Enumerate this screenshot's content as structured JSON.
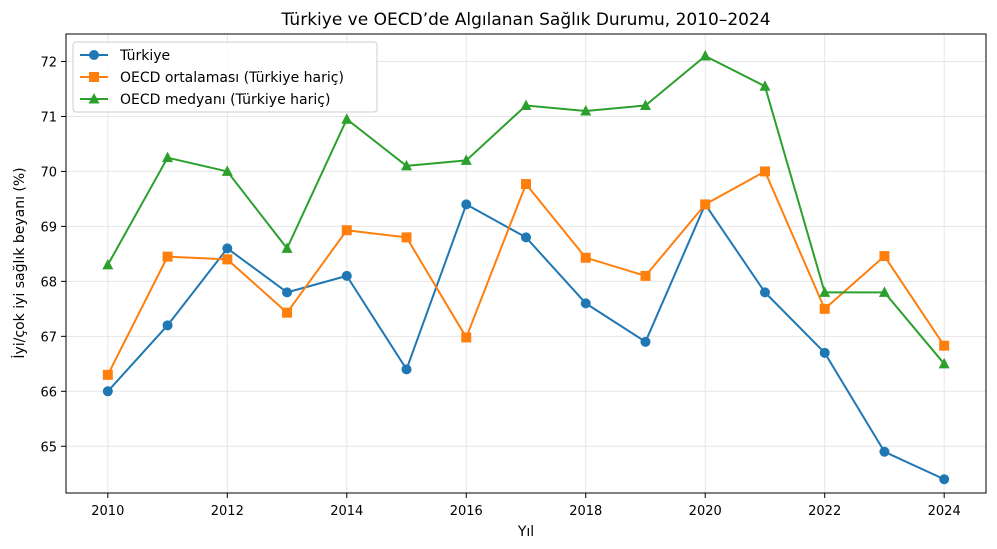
{
  "chart_data": {
    "type": "line",
    "title": "Türkiye ve OECD’de Algılanan Sağlık Durumu, 2010–2024",
    "xlabel": "Yıl",
    "ylabel": "İyi/çok iyi sağlık beyanı (%)",
    "x": [
      2010,
      2011,
      2012,
      2013,
      2014,
      2015,
      2016,
      2017,
      2018,
      2019,
      2020,
      2021,
      2022,
      2023,
      2024
    ],
    "xticks": [
      2010,
      2012,
      2014,
      2016,
      2018,
      2020,
      2022,
      2024
    ],
    "yticks": [
      65,
      66,
      67,
      68,
      69,
      70,
      71,
      72
    ],
    "xlim": [
      2009.3,
      2024.7
    ],
    "ylim": [
      64.15,
      72.5
    ],
    "grid": true,
    "legend_position": "top-left",
    "series": [
      {
        "name": "Türkiye",
        "color": "#1f77b4",
        "marker": "circle",
        "values": [
          66.0,
          67.2,
          68.6,
          67.8,
          68.1,
          66.4,
          69.4,
          68.8,
          67.6,
          66.9,
          69.4,
          67.8,
          66.7,
          64.9,
          64.4
        ]
      },
      {
        "name": "OECD ortalaması (Türkiye hariç)",
        "color": "#ff7f0e",
        "marker": "square",
        "values": [
          66.3,
          68.45,
          68.4,
          67.43,
          68.93,
          68.8,
          66.98,
          69.77,
          68.43,
          68.1,
          69.4,
          70.0,
          67.5,
          68.46,
          66.83
        ]
      },
      {
        "name": "OECD medyanı (Türkiye hariç)",
        "color": "#2ca02c",
        "marker": "triangle",
        "values": [
          68.3,
          70.25,
          70.0,
          68.6,
          70.95,
          70.1,
          70.2,
          71.2,
          71.1,
          71.2,
          72.1,
          71.55,
          67.8,
          67.8,
          66.5
        ]
      }
    ]
  }
}
